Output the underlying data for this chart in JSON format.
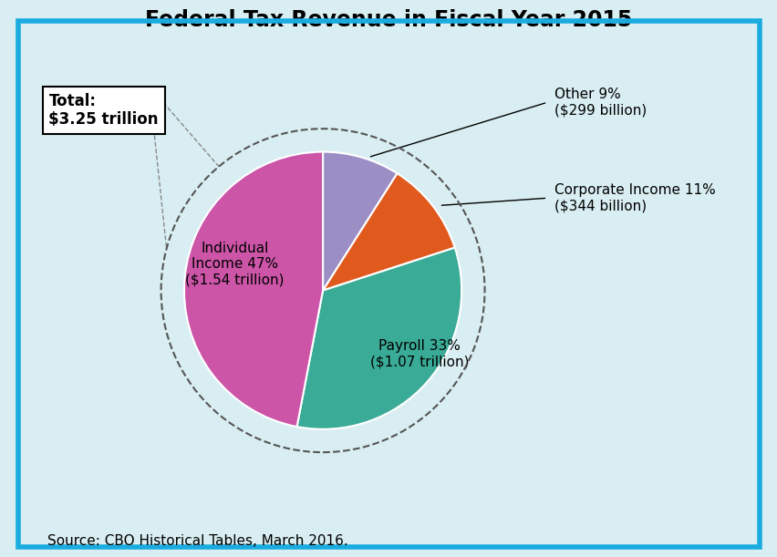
{
  "title": "Federal Tax Revenue in Fiscal Year 2015",
  "slices": [
    9,
    11,
    33,
    47
  ],
  "colors": [
    "#9b8ec4",
    "#e05a1e",
    "#3aab96",
    "#cc55a8"
  ],
  "background_color": "#d9eef2",
  "border_color": "#1aace0",
  "total_box_text": "Total:\n$3.25 trillion",
  "source_text": "Source: CBO Historical Tables, March 2016.",
  "title_fontsize": 17,
  "label_fontsize": 11,
  "source_fontsize": 11,
  "annot_other": "Other 9%\n($299 billion)",
  "annot_corp": "Corporate Income 11%\n($344 billion)",
  "label_payroll": "Payroll 33%\n($1.07 trillion)",
  "label_individual": "Individual\nIncome 47%\n($1.54 trillion)"
}
